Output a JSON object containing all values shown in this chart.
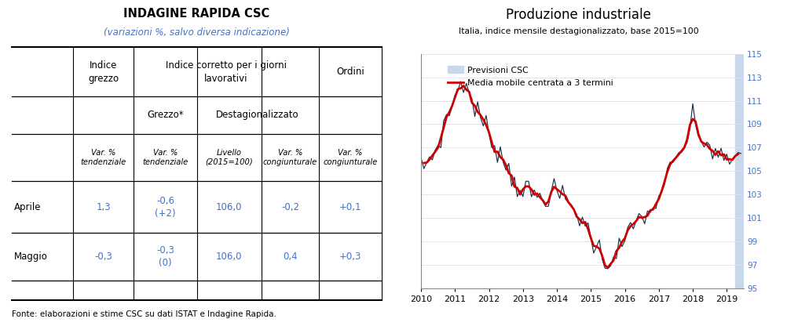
{
  "table_title": "INDAGINE RAPIDA CSC",
  "table_subtitle": "(variazioni %, salvo diversa indicazione)",
  "footnote": "Fonte: elaborazioni e stime CSC su dati ISTAT e Indagine Rapida.",
  "chart_title": "Produzione industriale",
  "chart_subtitle": "Italia, indice mensile destagionalizzato, base 2015=100",
  "ylim": [
    95,
    115
  ],
  "yticks": [
    95,
    97,
    99,
    101,
    103,
    105,
    107,
    109,
    111,
    113,
    115
  ],
  "line_color_dark": "#1c2f4a",
  "line_color_red": "#cc0000",
  "preview_color": "#c8d8ea",
  "text_blue": "#4472c4",
  "anchors_x": [
    2010.0,
    2010.25,
    2010.5,
    2010.75,
    2011.0,
    2011.17,
    2011.33,
    2011.5,
    2011.75,
    2012.0,
    2012.25,
    2012.5,
    2012.75,
    2013.0,
    2013.25,
    2013.5,
    2013.75,
    2014.0,
    2014.25,
    2014.5,
    2014.75,
    2015.0,
    2015.25,
    2015.42,
    2015.58,
    2015.75,
    2016.0,
    2016.25,
    2016.42,
    2016.58,
    2016.75,
    2017.0,
    2017.25,
    2017.5,
    2017.75,
    2018.0,
    2018.08,
    2018.25,
    2018.5,
    2018.75,
    2019.0,
    2019.17,
    2019.33,
    2019.42
  ],
  "anchors_y": [
    105.2,
    106.0,
    107.2,
    109.5,
    111.2,
    112.8,
    112.2,
    111.0,
    109.5,
    108.2,
    107.0,
    105.5,
    104.2,
    103.5,
    103.0,
    102.8,
    103.0,
    103.2,
    102.5,
    101.8,
    100.8,
    99.5,
    98.2,
    97.2,
    97.5,
    98.2,
    99.0,
    100.2,
    101.0,
    101.5,
    101.0,
    103.0,
    104.5,
    105.8,
    107.0,
    109.5,
    108.5,
    107.8,
    107.0,
    106.5,
    105.5,
    106.2,
    106.0,
    106.2
  ]
}
